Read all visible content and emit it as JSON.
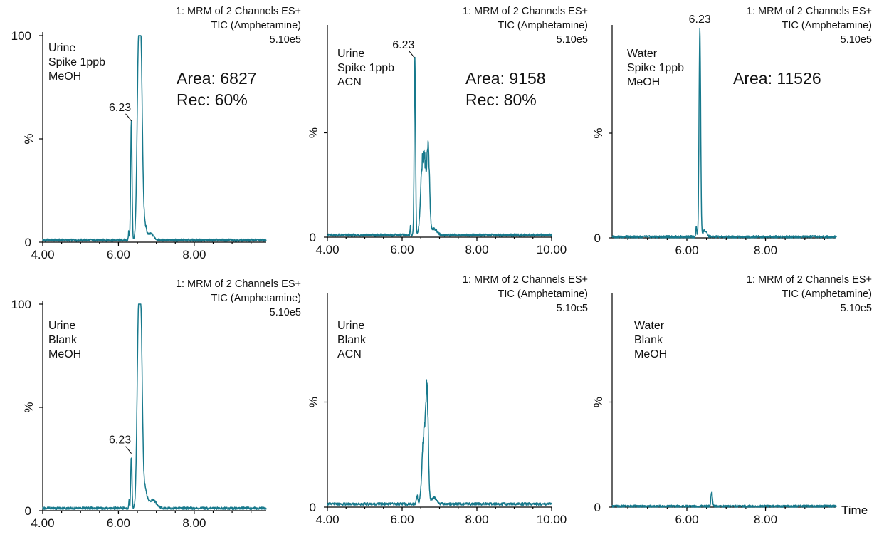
{
  "trace_color": "#17798c",
  "x_axis_label": "Time",
  "chart_data": [
    {
      "type": "line",
      "header": [
        "1: MRM of 2 Channels ES+",
        "TIC (Amphetamine)",
        "5.10e5"
      ],
      "condition": [
        "Urine",
        "Spike 1ppb",
        "MeOH"
      ],
      "annotation": [
        "Area: 6827",
        "Rec: 60%"
      ],
      "peak_label": "6.23",
      "peak_label_x": 6.23,
      "xlim": [
        4.0,
        9.9
      ],
      "ylim": [
        0,
        100
      ],
      "ylabel": "%",
      "xticks": [
        {
          "v": 4.0,
          "label": "4.00"
        },
        {
          "v": 6.0,
          "label": "6.00"
        },
        {
          "v": 8.0,
          "label": "8.00"
        }
      ],
      "yticks": [
        {
          "v": 0,
          "label": "0"
        },
        {
          "v": 100,
          "label": "100"
        }
      ],
      "baseline": 1,
      "peaks": [
        {
          "center": 6.34,
          "height": 58,
          "width": 0.018
        },
        {
          "center": 6.27,
          "height": 4,
          "width": 0.01
        },
        {
          "center": 6.56,
          "height": 100,
          "width": 0.04,
          "flat": 0.05
        },
        {
          "center": 6.68,
          "height": 8,
          "width": 0.05
        },
        {
          "center": 6.85,
          "height": 3,
          "width": 0.08
        }
      ]
    },
    {
      "type": "line",
      "header": [
        "1: MRM of 2 Channels ES+",
        "TIC (Amphetamine)",
        "5.10e5"
      ],
      "condition": [
        "Urine",
        "Spike 1ppb",
        "ACN"
      ],
      "annotation": [
        "Area: 9158",
        "Rec: 80%"
      ],
      "peak_label": "6.23",
      "peak_label_x": 6.23,
      "xlim": [
        4.0,
        10.0
      ],
      "ylim": [
        0,
        100
      ],
      "ylabel": "%",
      "xticks": [
        {
          "v": 4.0,
          "label": "4.00"
        },
        {
          "v": 6.0,
          "label": "6.00"
        },
        {
          "v": 8.0,
          "label": "8.00"
        },
        {
          "v": 10.0,
          "label": "10.00"
        }
      ],
      "yticks": [
        {
          "v": 0,
          "label": "0"
        }
      ],
      "baseline": 1,
      "peaks": [
        {
          "center": 6.34,
          "height": 85,
          "width": 0.018
        },
        {
          "center": 6.22,
          "height": 4,
          "width": 0.01
        },
        {
          "center": 6.57,
          "height": 38,
          "width": 0.05,
          "flat": 0.04
        },
        {
          "center": 6.7,
          "height": 38,
          "width": 0.035
        },
        {
          "center": 6.85,
          "height": 3,
          "width": 0.08
        }
      ]
    },
    {
      "type": "line",
      "header": [
        "1: MRM of 2 Channels ES+",
        "TIC (Amphetamine)",
        "5.10e5"
      ],
      "condition": [
        "Water",
        "Spike 1ppb",
        "MeOH"
      ],
      "annotation": [
        "Area: 11526"
      ],
      "peak_label": "6.23",
      "peak_label_x": 6.23,
      "xlim": [
        4.1,
        9.8
      ],
      "ylim": [
        0,
        100
      ],
      "ylabel": "%",
      "xticks": [
        {
          "v": 6.0,
          "label": "6.00"
        },
        {
          "v": 8.0,
          "label": "8.00"
        }
      ],
      "yticks": [
        {
          "v": 0,
          "label": "0"
        }
      ],
      "baseline": 0.5,
      "peaks": [
        {
          "center": 6.33,
          "height": 100,
          "width": 0.02
        },
        {
          "center": 6.24,
          "height": 5,
          "width": 0.012
        },
        {
          "center": 6.45,
          "height": 3,
          "width": 0.05
        }
      ]
    },
    {
      "type": "line",
      "header": [
        "1: MRM of 2 Channels ES+",
        "TIC (Amphetamine)",
        "5.10e5"
      ],
      "condition": [
        "Urine",
        "Blank",
        "MeOH"
      ],
      "annotation": [],
      "peak_label": "6.23",
      "peak_label_x": 6.23,
      "xlim": [
        4.0,
        9.9
      ],
      "ylim": [
        0,
        100
      ],
      "ylabel": "%",
      "xticks": [
        {
          "v": 4.0,
          "label": "4.00"
        },
        {
          "v": 6.0,
          "label": "6.00"
        },
        {
          "v": 8.0,
          "label": "8.00"
        }
      ],
      "yticks": [
        {
          "v": 0,
          "label": "0"
        },
        {
          "v": 100,
          "label": "100"
        }
      ],
      "baseline": 1.2,
      "peaks": [
        {
          "center": 6.34,
          "height": 27,
          "width": 0.016
        },
        {
          "center": 6.28,
          "height": 4,
          "width": 0.01
        },
        {
          "center": 6.56,
          "height": 100,
          "width": 0.04,
          "flat": 0.05
        },
        {
          "center": 6.7,
          "height": 9,
          "width": 0.05
        },
        {
          "center": 6.9,
          "height": 4,
          "width": 0.1
        }
      ]
    },
    {
      "type": "line",
      "header": [
        "1: MRM of 2 Channels ES+",
        "TIC (Amphetamine)",
        "5.10e5"
      ],
      "condition": [
        "Urine",
        "Blank",
        "ACN"
      ],
      "annotation": [],
      "peak_label": "",
      "xlim": [
        4.0,
        10.0
      ],
      "ylim": [
        0,
        100
      ],
      "ylabel": "%",
      "xticks": [
        {
          "v": 4.0,
          "label": "4.00"
        },
        {
          "v": 6.0,
          "label": "6.00"
        },
        {
          "v": 8.0,
          "label": "8.00"
        },
        {
          "v": 10.0,
          "label": "10.00"
        }
      ],
      "yticks": [
        {
          "v": 0,
          "label": "0"
        }
      ],
      "baseline": 1.5,
      "peaks": [
        {
          "center": 6.6,
          "height": 34,
          "width": 0.05,
          "flat": 0.03
        },
        {
          "center": 6.67,
          "height": 38,
          "width": 0.03
        },
        {
          "center": 6.4,
          "height": 4,
          "width": 0.02
        },
        {
          "center": 6.85,
          "height": 3,
          "width": 0.07
        }
      ]
    },
    {
      "type": "line",
      "header": [
        "1: MRM of 2 Channels ES+",
        "TIC (Amphetamine)",
        "5.10e5"
      ],
      "condition": [
        "Water",
        "Blank",
        "MeOH"
      ],
      "annotation": [],
      "peak_label": "",
      "xlim": [
        4.1,
        9.8
      ],
      "ylim": [
        0,
        100
      ],
      "ylabel": "%",
      "xticks": [
        {
          "v": 6.0,
          "label": "6.00"
        },
        {
          "v": 8.0,
          "label": "8.00"
        }
      ],
      "yticks": [
        {
          "v": 0,
          "label": "0"
        }
      ],
      "baseline": 0.4,
      "peaks": [
        {
          "center": 6.63,
          "height": 7,
          "width": 0.018
        }
      ]
    }
  ]
}
